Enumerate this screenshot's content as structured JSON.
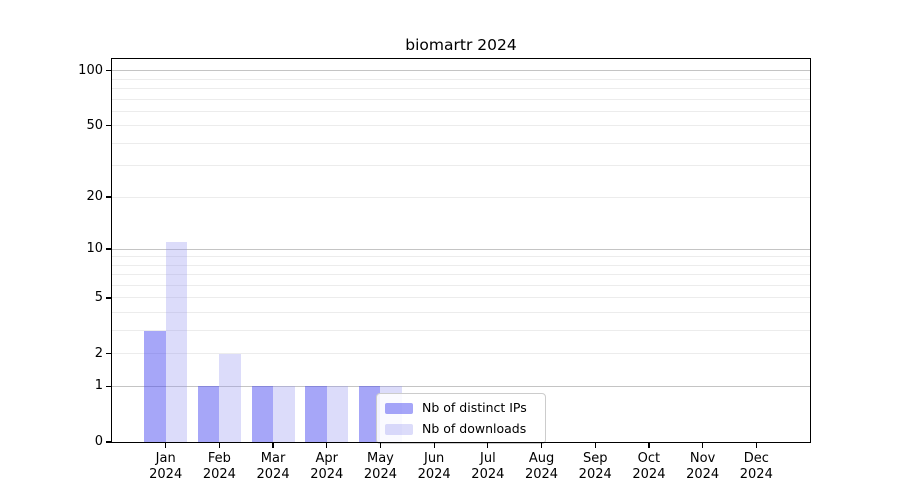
{
  "chart_data": {
    "type": "bar",
    "title": "biomartr 2024",
    "categories": [
      "Jan",
      "Feb",
      "Mar",
      "Apr",
      "May",
      "Jun",
      "Jul",
      "Aug",
      "Sep",
      "Oct",
      "Nov",
      "Dec"
    ],
    "category_sublabel": "2024",
    "series": [
      {
        "name": "Nb of distinct IPs",
        "color": "rgba(70,70,240,0.48)",
        "values": [
          3,
          1,
          1,
          1,
          1,
          0,
          0,
          0,
          0,
          0,
          0,
          0
        ]
      },
      {
        "name": "Nb of downloads",
        "color": "rgba(150,150,240,0.33)",
        "values": [
          11,
          2,
          1,
          1,
          1,
          0,
          0,
          0,
          0,
          0,
          0,
          0
        ]
      }
    ],
    "yscale": "log1p",
    "ylim": [
      0,
      116
    ],
    "yticks": [
      100,
      50,
      20,
      10,
      5,
      2,
      1,
      0
    ],
    "grid": {
      "major": [
        1,
        10,
        100
      ],
      "minor": [
        2,
        3,
        4,
        5,
        6,
        7,
        8,
        9,
        20,
        30,
        40,
        50,
        60,
        70,
        80,
        90
      ]
    },
    "legend_position": "inside-lower-right-of-center",
    "colors": {
      "grid_major": "#c4c4c4",
      "grid_minor": "#ececec",
      "spine": "#000000",
      "background": "#ffffff"
    }
  }
}
